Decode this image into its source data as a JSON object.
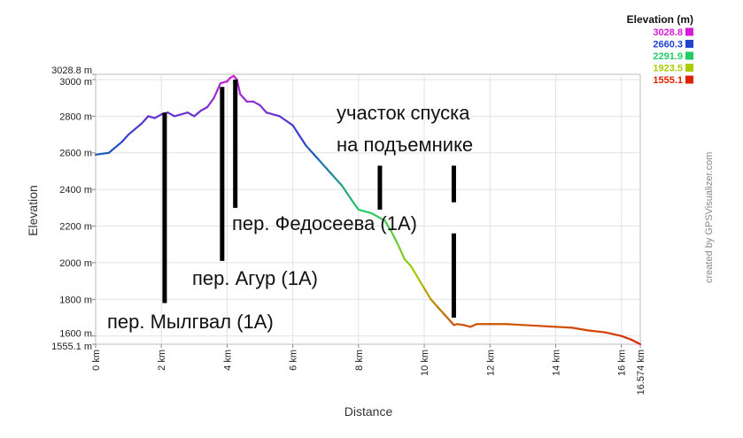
{
  "chart_data": {
    "type": "line",
    "title": "",
    "xlabel": "Distance",
    "ylabel": "Elevation",
    "x_unit": "km",
    "y_unit": "m",
    "xlim": [
      0,
      16.574
    ],
    "ylim": [
      1555.1,
      3028.8
    ],
    "x_ticks": [
      0,
      2,
      4,
      6,
      8,
      10,
      12,
      14,
      16,
      16.574
    ],
    "x_tick_labels": [
      "0 km",
      "2 km",
      "4 km",
      "6 km",
      "8 km",
      "10 km",
      "12 km",
      "14 km",
      "16 km",
      "16.574 km"
    ],
    "y_ticks": [
      1555.1,
      1600,
      1800,
      2000,
      2200,
      2400,
      2600,
      2800,
      3000,
      3028.8
    ],
    "y_tick_labels": [
      "1555.1 m",
      "1600 m",
      "1800 m",
      "2000 m",
      "2200 m",
      "2400 m",
      "2600 m",
      "2800 m",
      "3000 m",
      "3028.8 m"
    ],
    "grid": true,
    "series": [
      {
        "x": [
          0,
          0.4,
          0.8,
          1.0,
          1.2,
          1.4,
          1.6,
          1.8,
          2.0,
          2.2,
          2.4,
          2.6,
          2.8,
          3.0,
          3.2,
          3.4,
          3.6,
          3.8,
          4.0,
          4.1,
          4.2,
          4.3,
          4.4,
          4.6,
          4.8,
          5.0,
          5.2,
          5.6,
          6.0,
          6.4,
          6.8,
          7.2,
          7.5,
          7.8,
          8.0,
          8.4,
          8.8,
          9.0,
          9.2,
          9.4,
          9.6,
          9.8,
          10.0,
          10.2,
          10.4,
          10.6,
          10.8,
          10.9,
          11.0,
          11.2,
          11.4,
          11.6,
          12.0,
          12.5,
          13.0,
          13.5,
          14.0,
          14.5,
          15.0,
          15.5,
          16.0,
          16.3,
          16.574
        ],
        "y": [
          2590,
          2600,
          2660,
          2700,
          2730,
          2760,
          2800,
          2790,
          2810,
          2820,
          2800,
          2810,
          2820,
          2800,
          2830,
          2850,
          2900,
          2980,
          2990,
          3010,
          3020,
          3000,
          2920,
          2880,
          2880,
          2860,
          2820,
          2800,
          2750,
          2640,
          2560,
          2480,
          2420,
          2340,
          2290,
          2270,
          2230,
          2170,
          2100,
          2020,
          1980,
          1920,
          1860,
          1800,
          1760,
          1720,
          1680,
          1660,
          1665,
          1660,
          1650,
          1665,
          1665,
          1665,
          1660,
          1655,
          1650,
          1645,
          1630,
          1620,
          1600,
          1580,
          1555
        ]
      }
    ],
    "legend": {
      "title": "Elevation (m)",
      "placement": "top-right",
      "entries": [
        {
          "label": "3028.8",
          "color": "#d51bd5"
        },
        {
          "label": "2660.3",
          "color": "#2244cc"
        },
        {
          "label": "2291.9",
          "color": "#22cc66"
        },
        {
          "label": "1923.5",
          "color": "#aacc00"
        },
        {
          "label": "1555.1",
          "color": "#dd2200"
        }
      ]
    },
    "annotations": [
      {
        "text": "пер. Мылгвал (1А)",
        "x": 2.1,
        "y_top": 2820,
        "y_bottom": 1780
      },
      {
        "text": "пер. Агур (1А)",
        "x": 3.85,
        "y_top": 2960,
        "y_bottom": 2010
      },
      {
        "text": "пер. Федосеева (1А)",
        "x": 4.25,
        "y_top": 3000,
        "y_bottom": 2300
      },
      {
        "text": "участок спуска",
        "x": null
      },
      {
        "text": "на подъемнике",
        "x": null
      }
    ],
    "annotation_bars": [
      {
        "x": 8.65,
        "y_top": 2530,
        "y_bottom": 2290
      },
      {
        "x": 10.9,
        "y_top": 2530,
        "y_bottom": 2330
      },
      {
        "x": 10.9,
        "y_top": 2160,
        "y_bottom": 1700
      }
    ],
    "credit": "created by GPSVisualizer.com"
  }
}
